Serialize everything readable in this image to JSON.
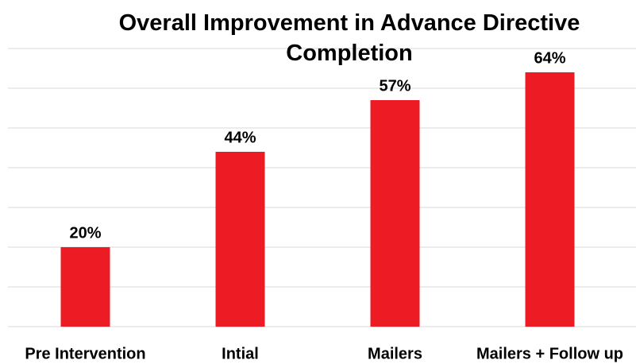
{
  "chart_data": {
    "type": "bar",
    "title": "Overall Improvement in Advance Directive Completion",
    "categories": [
      "Pre Intervention",
      "Intial",
      "Mailers",
      "Mailers + Follow up"
    ],
    "values": [
      20,
      44,
      57,
      64
    ],
    "value_labels": [
      "20%",
      "44%",
      "57%",
      "64%"
    ],
    "color": "#ed1c24",
    "ylim": [
      0,
      70
    ],
    "yticks": [
      0,
      10,
      20,
      30,
      40,
      50,
      60,
      70
    ],
    "grid": true
  }
}
